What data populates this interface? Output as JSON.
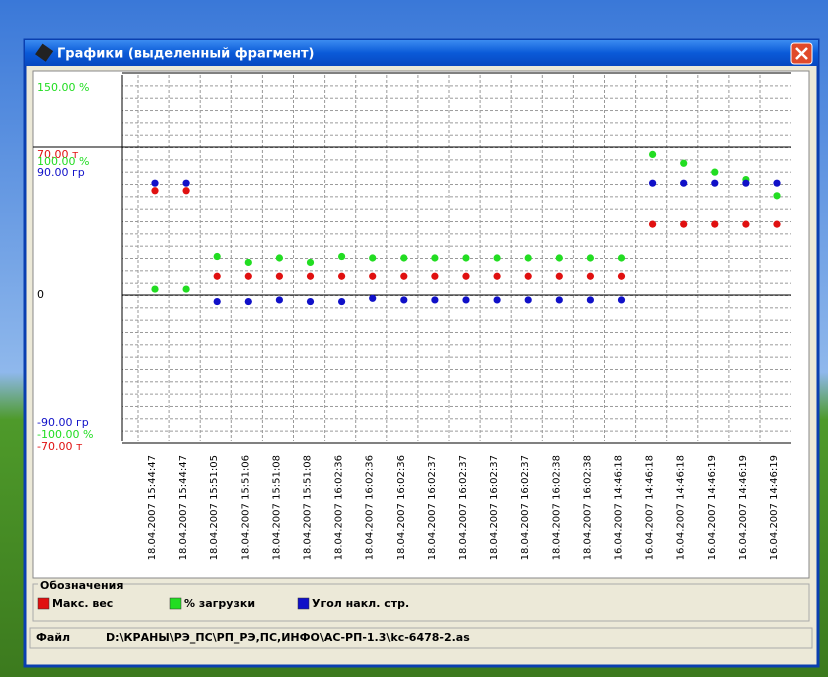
{
  "window": {
    "title": "Графики (выделенный фрагмент)"
  },
  "chart_data": {
    "type": "dot",
    "categories": [
      "18.04.2007 15:44:47",
      "18.04.2007 15:44:47",
      "18.04.2007 15:51:05",
      "18.04.2007 15:51:06",
      "18.04.2007 15:51:08",
      "18.04.2007 15:51:08",
      "18.04.2007 16:02:36",
      "18.04.2007 16:02:36",
      "18.04.2007 16:02:36",
      "18.04.2007 16:02:37",
      "18.04.2007 16:02:37",
      "18.04.2007 16:02:37",
      "18.04.2007 16:02:37",
      "18.04.2007 16:02:38",
      "18.04.2007 16:02:38",
      "16.04.2007 14:46:18",
      "16.04.2007 14:46:18",
      "16.04.2007 14:46:18",
      "16.04.2007 14:46:19",
      "16.04.2007 14:46:19",
      "16.04.2007 14:46:19"
    ],
    "ylim": [
      -100,
      150
    ],
    "yticks": [
      {
        "value": 150,
        "label": "150.00 %"
      },
      {
        "value": 100,
        "label": "100.00 %"
      },
      0,
      {
        "value": -100,
        "label": "-100.00 %"
      }
    ],
    "y2lim": [
      -70,
      107.5
    ],
    "y2ticks": [
      {
        "value": 70,
        "label": "70.00 т"
      },
      {
        "value": -70,
        "label": "-70.00 т"
      }
    ],
    "y3lim": [
      -90,
      135
    ],
    "y3ticks": [
      {
        "value": 90,
        "label": "90.00 гр"
      },
      {
        "value": -90,
        "label": "-90.00 гр"
      }
    ],
    "grid": true,
    "series": [
      {
        "name": "Макс. вес",
        "color": "#e01010",
        "axis": "y2",
        "values": [
          51,
          51,
          10,
          10,
          10,
          10,
          10,
          10,
          10,
          10,
          10,
          10,
          10,
          10,
          10,
          10,
          35,
          35,
          35,
          35,
          35
        ]
      },
      {
        "name": "% загрузки",
        "color": "#22dd22",
        "values": [
          4,
          4,
          26,
          22,
          25,
          22,
          26,
          25,
          25,
          25,
          25,
          25,
          25,
          25,
          25,
          25,
          95,
          89,
          83,
          78,
          67
        ]
      },
      {
        "name": "Угол накл. стр.",
        "color": "#1010c8",
        "axis": "y3",
        "values": [
          68,
          68,
          -4,
          -4,
          -3,
          -4,
          -4,
          -2,
          -3,
          -3,
          -3,
          -3,
          -3,
          -3,
          -3,
          -3,
          68,
          68,
          68,
          68,
          68
        ]
      }
    ]
  },
  "legend": {
    "title": "Обозначения"
  },
  "status": {
    "label": "Файл",
    "path": "D:\\КРАНЫ\\РЭ_ПС\\РП_РЭ,ПС,ИНФО\\АС-РП-1.3\\kc-6478-2.as"
  }
}
